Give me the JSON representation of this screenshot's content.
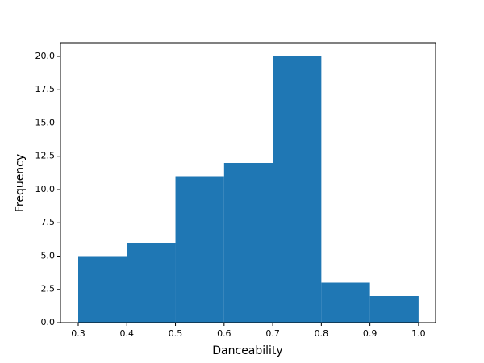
{
  "chart_data": {
    "type": "histogram",
    "xlabel": "Danceability",
    "ylabel": "Frequency",
    "bins": [
      0.3,
      0.4,
      0.5,
      0.6,
      0.7,
      0.8,
      0.9,
      1.0
    ],
    "values": [
      5,
      6,
      11,
      12,
      20,
      3,
      2
    ],
    "color": "#1f77b4",
    "xlim": [
      0.2635,
      1.035
    ],
    "xticks": [
      0.3,
      0.4,
      0.5,
      0.6,
      0.7,
      0.8,
      0.9,
      {
        "value": 1.0,
        "label": "1.0"
      }
    ],
    "ylim": [
      0,
      21.03
    ],
    "yticks": [
      {
        "value": 0,
        "label": "0.0"
      },
      {
        "value": 2.5,
        "label": "2.5"
      },
      {
        "value": 5,
        "label": "5.0"
      },
      {
        "value": 7.5,
        "label": "7.5"
      },
      {
        "value": 10,
        "label": "10.0"
      },
      {
        "value": 12.5,
        "label": "12.5"
      },
      {
        "value": 15,
        "label": "15.0"
      },
      {
        "value": 17.5,
        "label": "17.5"
      },
      {
        "value": 20,
        "label": "20.0"
      }
    ],
    "grid": false
  }
}
